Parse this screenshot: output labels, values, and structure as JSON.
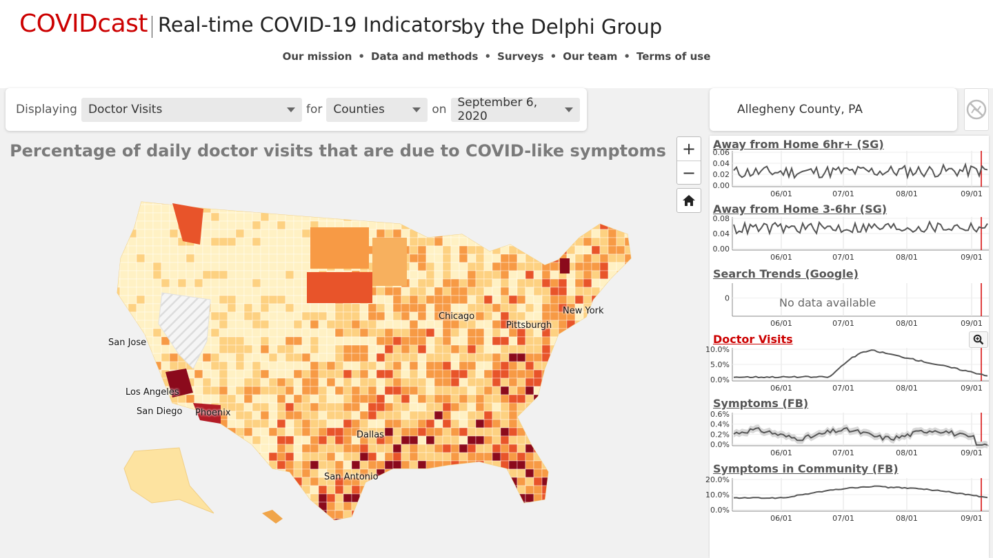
{
  "header": {
    "brand": "COVIDcast",
    "tagline": "Real-time COVID-19 Indicators",
    "by": "by the Delphi Group",
    "nav": [
      "Our mission",
      "Data and methods",
      "Surveys",
      "Our team",
      "Terms of use"
    ]
  },
  "controls": {
    "displaying_label": "Displaying",
    "signal": "Doctor Visits",
    "for_label": "for",
    "level": "Counties",
    "on_label": "on",
    "date": "September 6, 2020"
  },
  "map": {
    "title": "Percentage of daily doctor visits that are due to COVID-like symptoms",
    "cities": [
      "Chicago",
      "Pittsburgh",
      "New York",
      "San Jose",
      "Los Angeles",
      "San Diego",
      "Phoenix",
      "Dallas",
      "San Antonio"
    ],
    "colors": {
      "low": "#fff1c4",
      "mid": "#fdd181",
      "high": "#f79a45",
      "higher": "#e8542a",
      "max": "#8b0a1c",
      "nodata": "#e6e6e6"
    }
  },
  "zoom": {
    "in": "+",
    "out": "−"
  },
  "location": {
    "name": "Allegheny County, PA"
  },
  "side_panel": {
    "signals": [
      {
        "title": "Away from Home 6hr+ (SG)",
        "yticks": [
          "0.06",
          "0.04",
          "0.02",
          "0.00"
        ],
        "xticks": [
          "06/01",
          "07/01",
          "08/01",
          "09/01"
        ]
      },
      {
        "title": "Away from Home 3-6hr (SG)",
        "yticks": [
          "0.08",
          "0.04",
          "0.00"
        ],
        "xticks": [
          "06/01",
          "07/01",
          "08/01",
          "09/01"
        ]
      },
      {
        "title": "Search Trends (Google)",
        "yticks": [
          "0"
        ],
        "xticks": [
          "06/01",
          "07/01",
          "08/01",
          "09/01"
        ],
        "message": "No data available"
      },
      {
        "title": "Doctor Visits",
        "yticks": [
          "10.0%",
          "5.0%",
          "0.0%"
        ],
        "xticks": [
          "06/01",
          "07/01",
          "08/01",
          "09/01"
        ]
      },
      {
        "title": "Symptoms (FB)",
        "yticks": [
          "0.6%",
          "0.4%",
          "0.2%",
          "0.0%"
        ],
        "xticks": [
          "06/01",
          "07/01",
          "08/01",
          "09/01"
        ]
      },
      {
        "title": "Symptoms in Community (FB)",
        "yticks": [
          "20.0%",
          "10.0%",
          "0.0%"
        ],
        "xticks": [
          "06/01",
          "07/01",
          "08/01",
          "09/01"
        ]
      }
    ]
  }
}
